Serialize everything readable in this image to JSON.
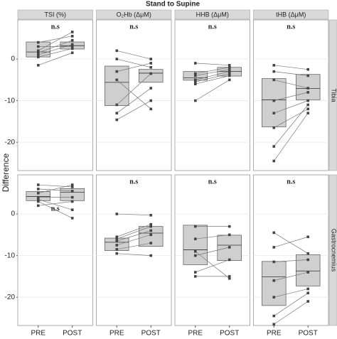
{
  "chart_data": {
    "type": "box",
    "title": "Stand to Supine",
    "ylabel": "Difference",
    "categories": [
      "PRE",
      "POST"
    ],
    "columns": [
      "TSI (%)",
      "O₂Hb (ΔμM)",
      "HHB (ΔμM)",
      "tHB (ΔμM)"
    ],
    "rows": [
      "Tibia",
      "Gastrocnemius"
    ],
    "ylim": [
      -26.8,
      9.4
    ],
    "yticks": [
      -20,
      -10,
      0
    ],
    "grid": true,
    "panels": [
      [
        {
          "annotation": "n.s",
          "boxes": [
            {
              "q1": 0.5,
              "median": 1.7,
              "q3": 4.1
            },
            {
              "q1": 2.4,
              "median": 3.2,
              "q3": 4.1
            }
          ],
          "pairs": [
            [
              0.5,
              2.5
            ],
            [
              1.0,
              3.5
            ],
            [
              1.5,
              4.5
            ],
            [
              2.0,
              6.5
            ],
            [
              3.0,
              3.0
            ],
            [
              -1.5,
              1.5
            ],
            [
              4.0,
              5.5
            ]
          ]
        },
        {
          "annotation": "n.s",
          "boxes": [
            {
              "q1": -11.2,
              "median": -5.6,
              "q3": -1.7
            },
            {
              "q1": -5.6,
              "median": -3.4,
              "q3": -2.5
            }
          ],
          "pairs": [
            [
              2.0,
              0.0
            ],
            [
              0.0,
              -2.0
            ],
            [
              -3.0,
              -1.0
            ],
            [
              -11.0,
              -3.5
            ],
            [
              -13.0,
              -7.0
            ],
            [
              -14.6,
              -10.0
            ],
            [
              -5.0,
              -12.0
            ]
          ]
        },
        {
          "annotation": "n.s",
          "boxes": [
            {
              "q1": -5.1,
              "median": -4.5,
              "q3": -3.0
            },
            {
              "q1": -4.1,
              "median": -3.0,
              "q3": -2.0
            }
          ],
          "pairs": [
            [
              -1.0,
              -1.5
            ],
            [
              -3.5,
              -2.0
            ],
            [
              -4.0,
              -2.5
            ],
            [
              -5.0,
              -3.0
            ],
            [
              -5.5,
              -3.5
            ],
            [
              -6.0,
              -4.0
            ],
            [
              -10.0,
              -5.0
            ]
          ]
        },
        {
          "annotation": "n.s",
          "boxes": [
            {
              "q1": -16.3,
              "median": -9.8,
              "q3": -4.7
            },
            {
              "q1": -9.8,
              "median": -7.1,
              "q3": -3.7
            }
          ],
          "pairs": [
            [
              -1.5,
              -2.5
            ],
            [
              -3.0,
              -4.0
            ],
            [
              -5.0,
              -7.0
            ],
            [
              -10.0,
              -8.0
            ],
            [
              -13.0,
              -10.0
            ],
            [
              -16.5,
              -12.0
            ],
            [
              -24.5,
              -13.0
            ],
            [
              -21.0,
              -11.0
            ]
          ]
        }
      ],
      [
        {
          "annotation": "n.s",
          "boxes": [
            {
              "q1": 3.2,
              "median": 4.2,
              "q3": 5.4
            },
            {
              "q1": 3.2,
              "median": 5.2,
              "q3": 6.1
            }
          ],
          "pairs": [
            [
              7.0,
              6.5
            ],
            [
              6.0,
              5.5
            ],
            [
              5.0,
              7.0
            ],
            [
              4.0,
              4.0
            ],
            [
              3.5,
              1.0
            ],
            [
              3.0,
              -1.0
            ],
            [
              2.0,
              3.0
            ]
          ]
        },
        {
          "annotation": "n.s",
          "boxes": [
            {
              "q1": -8.8,
              "median": -6.8,
              "q3": -5.8
            },
            {
              "q1": -7.8,
              "median": -4.6,
              "q3": -3.0
            }
          ],
          "pairs": [
            [
              0.0,
              -0.3
            ],
            [
              -5.5,
              -2.5
            ],
            [
              -6.0,
              -3.0
            ],
            [
              -6.5,
              -4.0
            ],
            [
              -7.5,
              -5.0
            ],
            [
              -8.5,
              -7.0
            ],
            [
              -9.5,
              -10.0
            ]
          ]
        },
        {
          "annotation": "n.s",
          "boxes": [
            {
              "q1": -12.2,
              "median": -8.6,
              "q3": -2.7
            },
            {
              "q1": -11.2,
              "median": -7.5,
              "q3": -5.1
            }
          ],
          "pairs": [
            [
              -3.0,
              -3.0
            ],
            [
              -6.0,
              -5.0
            ],
            [
              -9.0,
              -15.5
            ],
            [
              -10.0,
              -8.0
            ],
            [
              -14.0,
              -11.0
            ],
            [
              -15.0,
              -15.0
            ]
          ]
        },
        {
          "annotation": "n.s",
          "boxes": [
            {
              "q1": -22.0,
              "median": -15.1,
              "q3": -11.4
            },
            {
              "q1": -17.3,
              "median": -13.7,
              "q3": -9.8
            }
          ],
          "pairs": [
            [
              -4.5,
              -9.5
            ],
            [
              -8.0,
              -5.5
            ],
            [
              -11.5,
              -11.0
            ],
            [
              -16.0,
              -14.0
            ],
            [
              -20.0,
              -18.0
            ],
            [
              -24.5,
              -19.0
            ],
            [
              -26.5,
              -21.0
            ]
          ]
        }
      ]
    ]
  }
}
